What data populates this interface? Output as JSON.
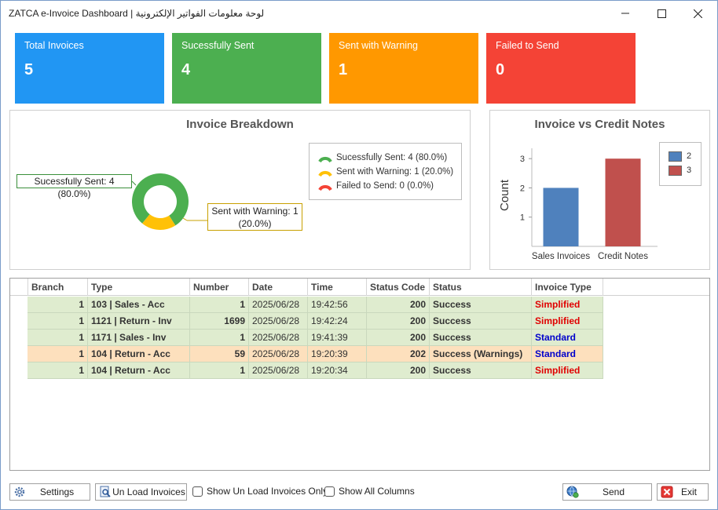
{
  "window": {
    "title": "ZATCA e-Invoice Dashboard  |  لوحة معلومات الفواتير الإلكترونية",
    "controls": {
      "minimize": "—",
      "maximize": "☐",
      "close": "✕"
    }
  },
  "cards": [
    {
      "label": "Total Invoices",
      "value": "5",
      "color": "#2196f3"
    },
    {
      "label": "Sucessfully Sent",
      "value": "4",
      "color": "#4caf50"
    },
    {
      "label": "Sent with Warning",
      "value": "1",
      "color": "#ff9800"
    },
    {
      "label": "Failed to Send",
      "value": "0",
      "color": "#f44336"
    }
  ],
  "breakdown": {
    "title": "Invoice Breakdown",
    "callout_success": "Sucessfully Sent: 4 (80.0%)",
    "callout_warning_line1": "Sent with Warning: 1",
    "callout_warning_line2": "(20.0%)",
    "legend": [
      {
        "label": "Sucessfully Sent: 4 (80.0%)",
        "color": "#4caf50"
      },
      {
        "label": "Sent with Warning: 1 (20.0%)",
        "color": "#ffc107"
      },
      {
        "label": "Failed to Send: 0 (0.0%)",
        "color": "#f44336"
      }
    ]
  },
  "comparison": {
    "title": "Invoice vs Credit Notes"
  },
  "chart_data": [
    {
      "type": "pie",
      "title": "Invoice Breakdown",
      "categories": [
        "Sucessfully Sent",
        "Sent with Warning",
        "Failed to Send"
      ],
      "values": [
        4,
        1,
        0
      ],
      "colors": [
        "#4caf50",
        "#ffc107",
        "#f44336"
      ],
      "donut": true
    },
    {
      "type": "bar",
      "title": "Invoice vs Credit Notes",
      "categories": [
        "Sales Invoices",
        "Credit Notes"
      ],
      "values": [
        2,
        3
      ],
      "colors": [
        "#4f81bd",
        "#c0504d"
      ],
      "legend": [
        "2",
        "3"
      ],
      "legend_position": "right",
      "ylabel": "Count",
      "ylim": [
        0,
        3.3
      ],
      "yticks": [
        1,
        2,
        3
      ],
      "grid": false
    }
  ],
  "grid": {
    "columns": [
      "Branch",
      "Type",
      "Number",
      "Date",
      "Time",
      "Status Code",
      "Status",
      "Invoice Type"
    ],
    "rows": [
      {
        "branch": "1",
        "type": "103 | Sales - Acc",
        "number": "1",
        "date": "2025/06/28",
        "time": "19:42:56",
        "code": "200",
        "status": "Success",
        "inv_type": "Simplified",
        "bg": "#dfeccf",
        "inv_color": "#e00000"
      },
      {
        "branch": "1",
        "type": "1121 | Return - Inv",
        "number": "1699",
        "date": "2025/06/28",
        "time": "19:42:24",
        "code": "200",
        "status": "Success",
        "inv_type": "Simplified",
        "bg": "#dfeccf",
        "inv_color": "#e00000"
      },
      {
        "branch": "1",
        "type": "1171 | Sales - Inv",
        "number": "1",
        "date": "2025/06/28",
        "time": "19:41:39",
        "code": "200",
        "status": "Success",
        "inv_type": "Standard",
        "bg": "#dfeccf",
        "inv_color": "#0000cc"
      },
      {
        "branch": "1",
        "type": "104 | Return - Acc",
        "number": "59",
        "date": "2025/06/28",
        "time": "19:20:39",
        "code": "202",
        "status": "Success (Warnings)",
        "inv_type": "Standard",
        "bg": "#fde0bd",
        "inv_color": "#0000cc"
      },
      {
        "branch": "1",
        "type": "104 | Return - Acc",
        "number": "1",
        "date": "2025/06/28",
        "time": "19:20:34",
        "code": "200",
        "status": "Success",
        "inv_type": "Simplified",
        "bg": "#dfeccf",
        "inv_color": "#e00000"
      }
    ]
  },
  "footer": {
    "settings": "Settings",
    "unload_invoices": "Un Load Invoices",
    "show_unload_only": "Show Un Load Invoices Only",
    "show_all_columns": "Show All Columns",
    "send": "Send",
    "exit": "Exit"
  }
}
